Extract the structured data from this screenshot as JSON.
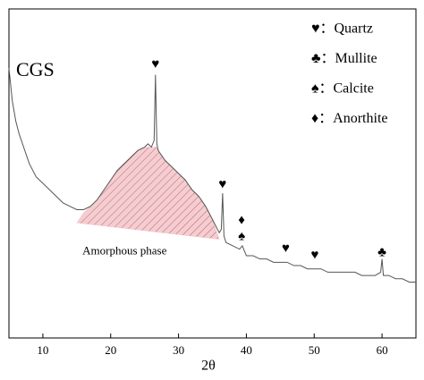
{
  "chart_data": {
    "type": "line",
    "x_label": "2θ",
    "xlim": [
      5,
      65
    ],
    "xticks": [
      10,
      20,
      30,
      40,
      50,
      60
    ],
    "ylim": [
      0,
      100
    ],
    "series": [
      {
        "name": "CGS",
        "color": "#555555",
        "x": [
          5,
          5.5,
          6,
          6.5,
          7,
          7.5,
          8,
          8.5,
          9,
          9.5,
          10,
          11,
          12,
          13,
          14,
          15,
          16,
          17,
          18,
          19,
          20,
          21,
          22,
          23,
          24,
          25,
          25.5,
          26,
          26.4,
          26.6,
          26.8,
          27,
          28,
          29,
          30,
          31,
          32,
          33,
          34,
          35,
          36,
          36.3,
          36.5,
          36.7,
          37,
          38,
          39,
          39.4,
          40,
          41,
          42,
          43,
          44,
          45,
          46,
          47,
          48,
          49,
          50,
          51,
          52,
          53,
          54,
          55,
          56,
          57,
          58,
          59,
          59.8,
          60,
          60.2,
          61,
          62,
          63,
          64,
          65
        ],
        "values": [
          82,
          72,
          66,
          62,
          59,
          56,
          53,
          51,
          49,
          48,
          47,
          45,
          43,
          41,
          40,
          39,
          39,
          40,
          42,
          45,
          48,
          51,
          53,
          55,
          57,
          58,
          59,
          58,
          60,
          80,
          59,
          57,
          54,
          52,
          50,
          48,
          45,
          43,
          40,
          36,
          32,
          33,
          44,
          31,
          29,
          28,
          27,
          28,
          25,
          25,
          24,
          24,
          23,
          23,
          23,
          22,
          22,
          21,
          21,
          21,
          20,
          20,
          20,
          20,
          20,
          19,
          19,
          19,
          20,
          24,
          19,
          19,
          18,
          18,
          17,
          17
        ]
      },
      {
        "name": "Amorphous phase",
        "color": "#a52a2a",
        "fill": "#f2c4c8",
        "x": [
          15,
          16,
          17,
          18,
          19,
          20,
          21,
          22,
          23,
          24,
          25,
          25.5,
          26,
          26.4,
          26.8,
          27,
          28,
          29,
          30,
          31,
          32,
          33,
          34,
          35,
          36
        ],
        "values": [
          35,
          38,
          40,
          42,
          45,
          48,
          51,
          53,
          55,
          57,
          58,
          58,
          58,
          58,
          58,
          57,
          54,
          52,
          50,
          48,
          45,
          43,
          40,
          36,
          30
        ]
      }
    ],
    "annotations": [
      {
        "text": "♥",
        "x": 26.6,
        "y": 83
      },
      {
        "text": "♥",
        "x": 36.5,
        "y": 46.5
      },
      {
        "text": "♦",
        "x": 39.3,
        "y": 35.6
      },
      {
        "text": "♠",
        "x": 39.3,
        "y": 30.7
      },
      {
        "text": "♥",
        "x": 45.8,
        "y": 27
      },
      {
        "text": "♥",
        "x": 50.1,
        "y": 25
      },
      {
        "text": "♣",
        "x": 60,
        "y": 25.8
      }
    ],
    "legend": [
      "♥：Quartz",
      "♣：Mullite",
      "♠：Calcite",
      "♦：Anorthite"
    ]
  }
}
